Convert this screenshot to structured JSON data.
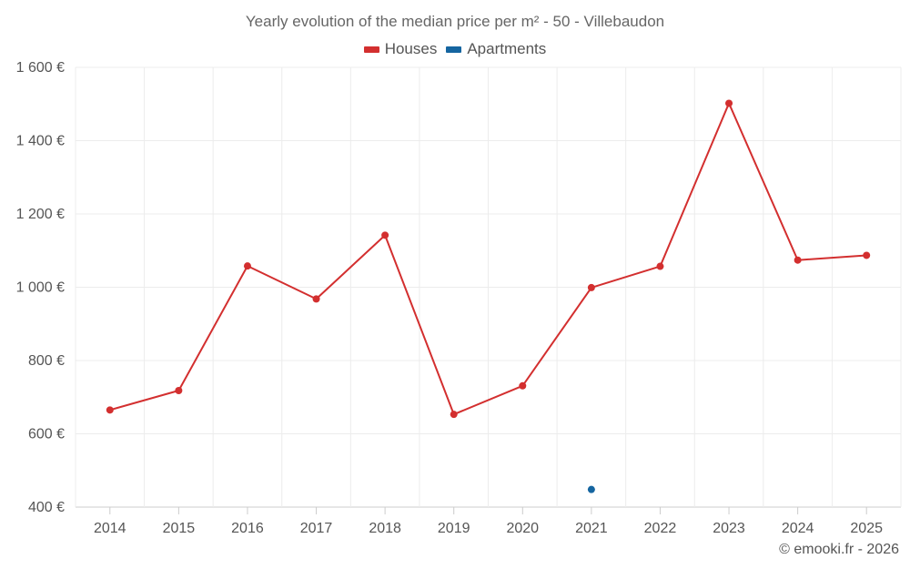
{
  "chart_data": {
    "type": "line",
    "title": "Yearly evolution of the median price per m² - 50 - Villebaudon",
    "xlabel": "",
    "ylabel": "",
    "categories": [
      "2014",
      "2015",
      "2016",
      "2017",
      "2018",
      "2019",
      "2020",
      "2021",
      "2022",
      "2023",
      "2024",
      "2025"
    ],
    "ylim": [
      400,
      1600
    ],
    "yticks": [
      400,
      600,
      800,
      1000,
      1200,
      1400,
      1600
    ],
    "ytick_labels": [
      "400 €",
      "600 €",
      "800 €",
      "1 000 €",
      "1 200 €",
      "1 400 €",
      "1 600 €"
    ],
    "grid": true,
    "legend_position": "top-center",
    "series": [
      {
        "name": "Houses",
        "color": "#d32f2f",
        "values": [
          665,
          718,
          1058,
          968,
          1142,
          653,
          731,
          999,
          1057,
          1502,
          1074,
          1087
        ]
      },
      {
        "name": "Apartments",
        "color": "#1565a0",
        "values": [
          null,
          null,
          null,
          null,
          null,
          null,
          null,
          448,
          null,
          null,
          null,
          null
        ]
      }
    ]
  },
  "credits": "© emooki.fr - 2026"
}
